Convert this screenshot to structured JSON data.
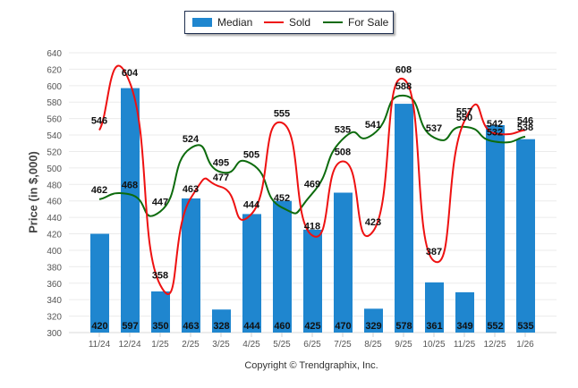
{
  "chart_data": {
    "type": "bar",
    "title": "",
    "xlabel": "",
    "ylabel": "Price (in $,000)",
    "ylim": [
      300,
      640
    ],
    "ytick_step": 20,
    "grid": true,
    "legend_position": "top-center",
    "categories": [
      "11/24",
      "12/24",
      "1/25",
      "2/25",
      "3/25",
      "4/25",
      "5/25",
      "6/25",
      "7/25",
      "8/25",
      "9/25",
      "10/25",
      "11/25",
      "12/25",
      "1/26"
    ],
    "series": [
      {
        "name": "Median",
        "kind": "bar",
        "color": "#1f86cf",
        "values": [
          420,
          597,
          350,
          463,
          328,
          444,
          460,
          425,
          470,
          329,
          578,
          361,
          349,
          552,
          535
        ]
      },
      {
        "name": "Sold",
        "kind": "line",
        "color": "#ee1111",
        "values": [
          546,
          604,
          358,
          463,
          477,
          444,
          555,
          418,
          508,
          423,
          608,
          387,
          557,
          542,
          546
        ]
      },
      {
        "name": "For Sale",
        "kind": "line",
        "color": "#0d6b0d",
        "values": [
          462,
          468,
          447,
          524,
          495,
          505,
          452,
          469,
          535,
          541,
          588,
          537,
          550,
          532,
          538
        ]
      }
    ]
  },
  "legend": {
    "items": [
      {
        "label": "Median",
        "color": "#1f86cf"
      },
      {
        "label": "Sold",
        "color": "#ee1111"
      },
      {
        "label": "For Sale",
        "color": "#0d6b0d"
      }
    ]
  },
  "footer": {
    "copyright": "Copyright © Trendgraphix, Inc."
  }
}
